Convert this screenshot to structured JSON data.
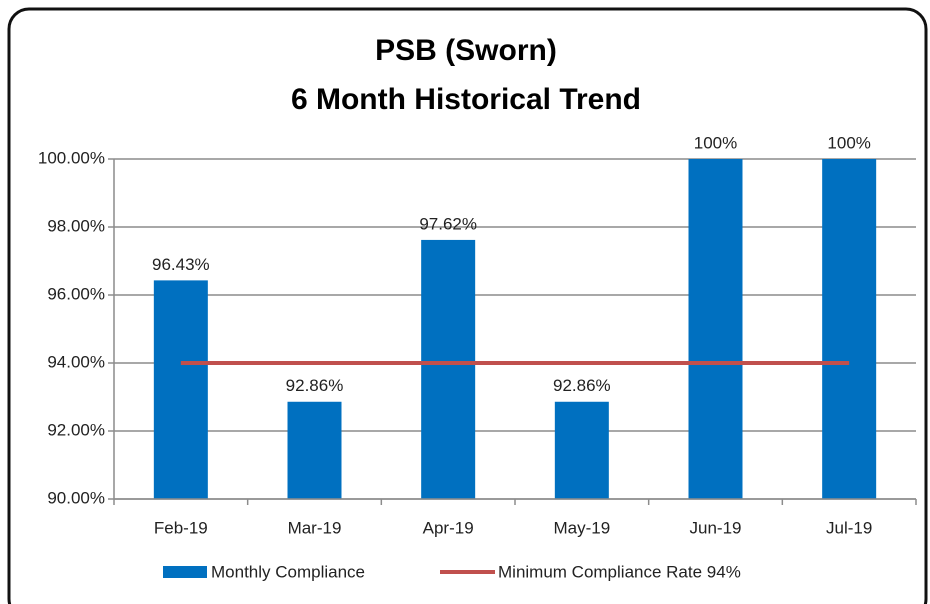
{
  "chart_data": {
    "type": "bar",
    "title": "PSB (Sworn)",
    "subtitle": "6 Month Historical Trend",
    "categories": [
      "Feb-19",
      "Mar-19",
      "Apr-19",
      "May-19",
      "Jun-19",
      "Jul-19"
    ],
    "series": [
      {
        "name": "Monthly Compliance",
        "type": "bar",
        "color": "#0070c0",
        "values": [
          96.43,
          92.86,
          97.62,
          92.86,
          100,
          100
        ],
        "value_labels": [
          "96.43%",
          "92.86%",
          "97.62%",
          "92.86%",
          "100%",
          "100%"
        ]
      },
      {
        "name": "Minimum Compliance Rate 94%",
        "type": "line",
        "color": "#c0504d",
        "values": [
          94,
          94,
          94,
          94,
          94,
          94
        ]
      }
    ],
    "ylim": [
      90,
      100
    ],
    "yticks": [
      {
        "value": 90,
        "label": "90.00%"
      },
      {
        "value": 92,
        "label": "92.00%"
      },
      {
        "value": 94,
        "label": "94.00%"
      },
      {
        "value": 96,
        "label": "96.00%"
      },
      {
        "value": 98,
        "label": "98.00%"
      },
      {
        "value": 100,
        "label": "100.00%"
      }
    ],
    "grid": true,
    "legend": "bottom"
  }
}
